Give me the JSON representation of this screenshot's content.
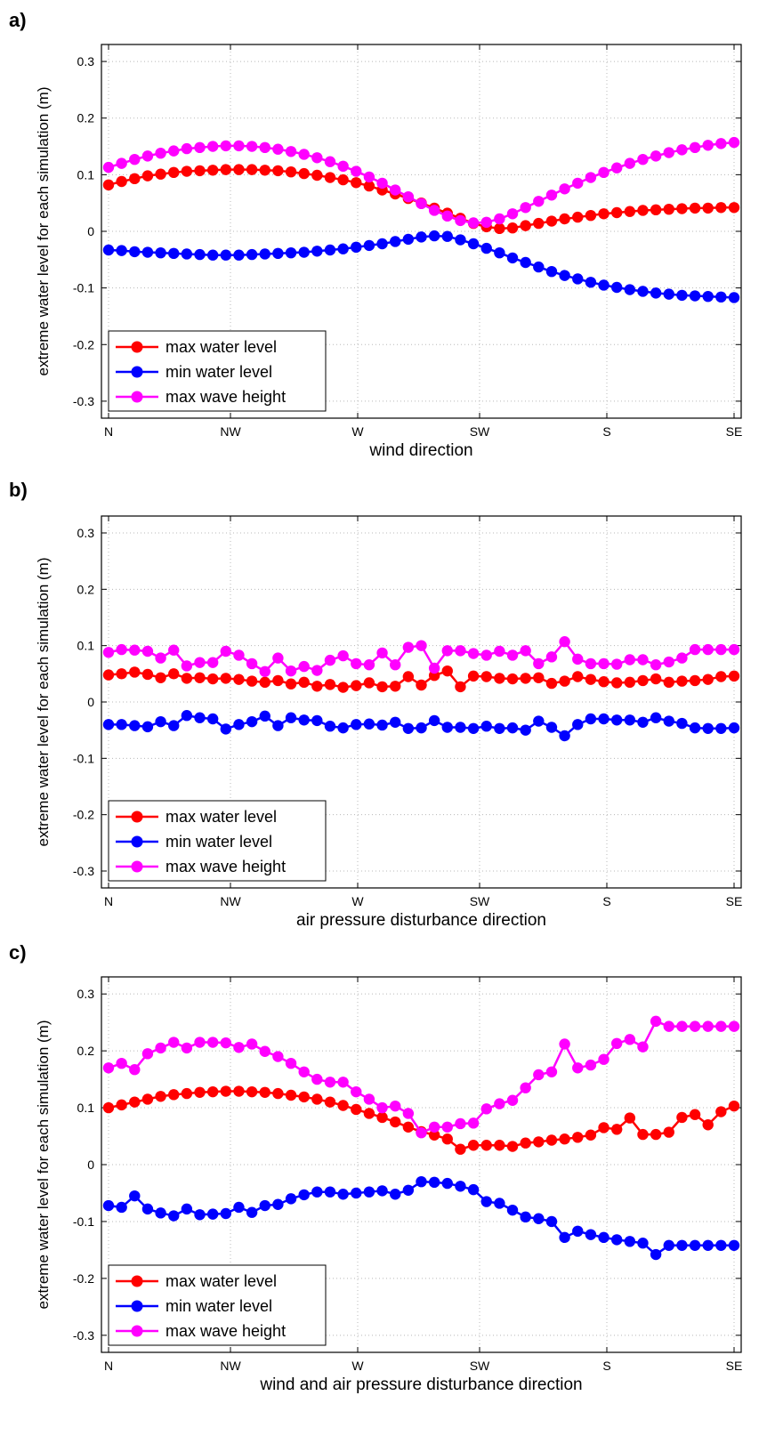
{
  "chart_data": [
    {
      "type": "line",
      "panel_label": "a)",
      "xlabel": "wind direction",
      "ylabel": "extreme water level for each simulation (m)",
      "xlim": [
        0,
        48
      ],
      "ylim": [
        -0.33,
        0.33
      ],
      "xticks": [
        {
          "label": "N",
          "at": 0
        },
        {
          "label": "NW",
          "at": 12
        },
        {
          "label": "W",
          "at": 24
        },
        {
          "label": "SW",
          "at": 36
        },
        {
          "label": "S",
          "at": 48
        }
      ],
      "xtick_last_label": "SE",
      "yticks": [
        "-0.3",
        "-0.2",
        "-0.1",
        "0",
        "0.1",
        "0.2",
        "0.3"
      ],
      "grid": true,
      "legend_position": "bottom-left",
      "series": [
        {
          "name": "max water level",
          "color": "#ff0000",
          "values": [
            0.082,
            0.088,
            0.093,
            0.098,
            0.101,
            0.104,
            0.106,
            0.107,
            0.108,
            0.109,
            0.109,
            0.109,
            0.108,
            0.107,
            0.105,
            0.102,
            0.099,
            0.095,
            0.091,
            0.086,
            0.08,
            0.073,
            0.066,
            0.058,
            0.05,
            0.041,
            0.032,
            0.023,
            0.014,
            0.008,
            0.005,
            0.006,
            0.01,
            0.014,
            0.018,
            0.022,
            0.025,
            0.028,
            0.031,
            0.033,
            0.035,
            0.037,
            0.038,
            0.039,
            0.04,
            0.041,
            0.041,
            0.042,
            0.042
          ]
        },
        {
          "name": "min water level",
          "color": "#0000ff",
          "values": [
            -0.033,
            -0.034,
            -0.036,
            -0.037,
            -0.038,
            -0.039,
            -0.04,
            -0.041,
            -0.042,
            -0.042,
            -0.042,
            -0.041,
            -0.04,
            -0.039,
            -0.038,
            -0.037,
            -0.035,
            -0.033,
            -0.031,
            -0.028,
            -0.025,
            -0.022,
            -0.018,
            -0.014,
            -0.01,
            -0.008,
            -0.009,
            -0.015,
            -0.022,
            -0.03,
            -0.038,
            -0.047,
            -0.055,
            -0.063,
            -0.071,
            -0.078,
            -0.084,
            -0.09,
            -0.095,
            -0.099,
            -0.103,
            -0.106,
            -0.109,
            -0.111,
            -0.113,
            -0.114,
            -0.115,
            -0.116,
            -0.117
          ]
        },
        {
          "name": "max wave height",
          "color": "#ff00ff",
          "values": [
            0.113,
            0.12,
            0.127,
            0.133,
            0.138,
            0.142,
            0.146,
            0.148,
            0.15,
            0.151,
            0.151,
            0.15,
            0.148,
            0.145,
            0.141,
            0.136,
            0.13,
            0.123,
            0.115,
            0.106,
            0.096,
            0.085,
            0.073,
            0.061,
            0.049,
            0.037,
            0.027,
            0.019,
            0.015,
            0.016,
            0.022,
            0.031,
            0.042,
            0.053,
            0.064,
            0.075,
            0.085,
            0.095,
            0.104,
            0.112,
            0.12,
            0.127,
            0.133,
            0.139,
            0.144,
            0.148,
            0.152,
            0.155,
            0.157
          ]
        }
      ]
    },
    {
      "type": "line",
      "panel_label": "b)",
      "xlabel": "air pressure disturbance direction",
      "ylabel": "extreme water level for each simulation (m)",
      "xlim": [
        0,
        48
      ],
      "ylim": [
        -0.33,
        0.33
      ],
      "xticks": [
        {
          "label": "N",
          "at": 0
        },
        {
          "label": "NW",
          "at": 12
        },
        {
          "label": "W",
          "at": 24
        },
        {
          "label": "SW",
          "at": 36
        },
        {
          "label": "S",
          "at": 48
        }
      ],
      "xtick_last_label": "SE",
      "yticks": [
        "-0.3",
        "-0.2",
        "-0.1",
        "0",
        "0.1",
        "0.2",
        "0.3"
      ],
      "grid": true,
      "legend_position": "bottom-left",
      "series": [
        {
          "name": "max water level",
          "color": "#ff0000",
          "values": [
            0.048,
            0.05,
            0.053,
            0.049,
            0.043,
            0.05,
            0.042,
            0.043,
            0.041,
            0.042,
            0.04,
            0.037,
            0.035,
            0.038,
            0.032,
            0.035,
            0.028,
            0.031,
            0.026,
            0.029,
            0.034,
            0.027,
            0.028,
            0.045,
            0.03,
            0.047,
            0.055,
            0.027,
            0.046,
            0.045,
            0.042,
            0.041,
            0.042,
            0.043,
            0.033,
            0.037,
            0.045,
            0.04,
            0.036,
            0.034,
            0.035,
            0.038,
            0.041,
            0.035,
            0.037,
            0.038,
            0.04,
            0.045,
            0.046
          ]
        },
        {
          "name": "min water level",
          "color": "#0000ff",
          "values": [
            -0.04,
            -0.04,
            -0.042,
            -0.044,
            -0.035,
            -0.042,
            -0.024,
            -0.028,
            -0.03,
            -0.048,
            -0.04,
            -0.035,
            -0.025,
            -0.042,
            -0.028,
            -0.032,
            -0.033,
            -0.043,
            -0.046,
            -0.04,
            -0.039,
            -0.041,
            -0.036,
            -0.047,
            -0.046,
            -0.033,
            -0.045,
            -0.045,
            -0.047,
            -0.043,
            -0.047,
            -0.046,
            -0.05,
            -0.034,
            -0.045,
            -0.06,
            -0.04,
            -0.03,
            -0.03,
            -0.032,
            -0.032,
            -0.036,
            -0.028,
            -0.034,
            -0.038,
            -0.046,
            -0.047,
            -0.047,
            -0.046
          ]
        },
        {
          "name": "max wave height",
          "color": "#ff00ff",
          "values": [
            0.088,
            0.093,
            0.092,
            0.09,
            0.078,
            0.092,
            0.064,
            0.07,
            0.07,
            0.09,
            0.083,
            0.068,
            0.054,
            0.078,
            0.055,
            0.063,
            0.056,
            0.074,
            0.082,
            0.068,
            0.066,
            0.087,
            0.066,
            0.097,
            0.1,
            0.06,
            0.091,
            0.091,
            0.086,
            0.083,
            0.09,
            0.083,
            0.091,
            0.068,
            0.08,
            0.107,
            0.076,
            0.068,
            0.068,
            0.067,
            0.075,
            0.075,
            0.066,
            0.071,
            0.078,
            0.093,
            0.093,
            0.093,
            0.093
          ]
        }
      ]
    },
    {
      "type": "line",
      "panel_label": "c)",
      "xlabel": "wind and air pressure disturbance direction",
      "ylabel": "extreme water level for each simulation (m)",
      "xlim": [
        0,
        48
      ],
      "ylim": [
        -0.33,
        0.33
      ],
      "xticks": [
        {
          "label": "N",
          "at": 0
        },
        {
          "label": "NW",
          "at": 12
        },
        {
          "label": "W",
          "at": 24
        },
        {
          "label": "SW",
          "at": 36
        },
        {
          "label": "S",
          "at": 48
        }
      ],
      "xtick_last_label": "SE",
      "yticks": [
        "-0.3",
        "-0.2",
        "-0.1",
        "0",
        "0.1",
        "0.2",
        "0.3"
      ],
      "grid": true,
      "legend_position": "bottom-left",
      "series": [
        {
          "name": "max water level",
          "color": "#ff0000",
          "values": [
            0.1,
            0.105,
            0.11,
            0.115,
            0.12,
            0.123,
            0.125,
            0.127,
            0.128,
            0.129,
            0.129,
            0.128,
            0.127,
            0.125,
            0.122,
            0.119,
            0.115,
            0.11,
            0.104,
            0.097,
            0.09,
            0.083,
            0.075,
            0.066,
            0.058,
            0.052,
            0.045,
            0.027,
            0.034,
            0.034,
            0.034,
            0.032,
            0.038,
            0.04,
            0.043,
            0.045,
            0.048,
            0.052,
            0.065,
            0.062,
            0.082,
            0.053,
            0.053,
            0.057,
            0.083,
            0.088,
            0.07,
            0.093,
            0.103
          ]
        },
        {
          "name": "min water level",
          "color": "#0000ff",
          "values": [
            -0.072,
            -0.075,
            -0.055,
            -0.078,
            -0.085,
            -0.09,
            -0.078,
            -0.088,
            -0.087,
            -0.086,
            -0.075,
            -0.084,
            -0.072,
            -0.07,
            -0.06,
            -0.053,
            -0.048,
            -0.048,
            -0.052,
            -0.05,
            -0.048,
            -0.046,
            -0.052,
            -0.045,
            -0.03,
            -0.031,
            -0.033,
            -0.038,
            -0.044,
            -0.065,
            -0.068,
            -0.08,
            -0.092,
            -0.095,
            -0.1,
            -0.128,
            -0.117,
            -0.123,
            -0.128,
            -0.132,
            -0.135,
            -0.138,
            -0.158,
            -0.142,
            -0.142,
            -0.142,
            -0.142,
            -0.142,
            -0.142
          ]
        },
        {
          "name": "max wave height",
          "color": "#ff00ff",
          "values": [
            0.17,
            0.178,
            0.167,
            0.195,
            0.205,
            0.215,
            0.205,
            0.215,
            0.215,
            0.214,
            0.206,
            0.212,
            0.199,
            0.19,
            0.178,
            0.163,
            0.15,
            0.145,
            0.145,
            0.128,
            0.115,
            0.1,
            0.103,
            0.09,
            0.056,
            0.066,
            0.066,
            0.072,
            0.073,
            0.098,
            0.107,
            0.113,
            0.135,
            0.158,
            0.163,
            0.212,
            0.17,
            0.175,
            0.185,
            0.213,
            0.22,
            0.207,
            0.252,
            0.243,
            0.243,
            0.243,
            0.243,
            0.243,
            0.243
          ]
        }
      ]
    }
  ]
}
